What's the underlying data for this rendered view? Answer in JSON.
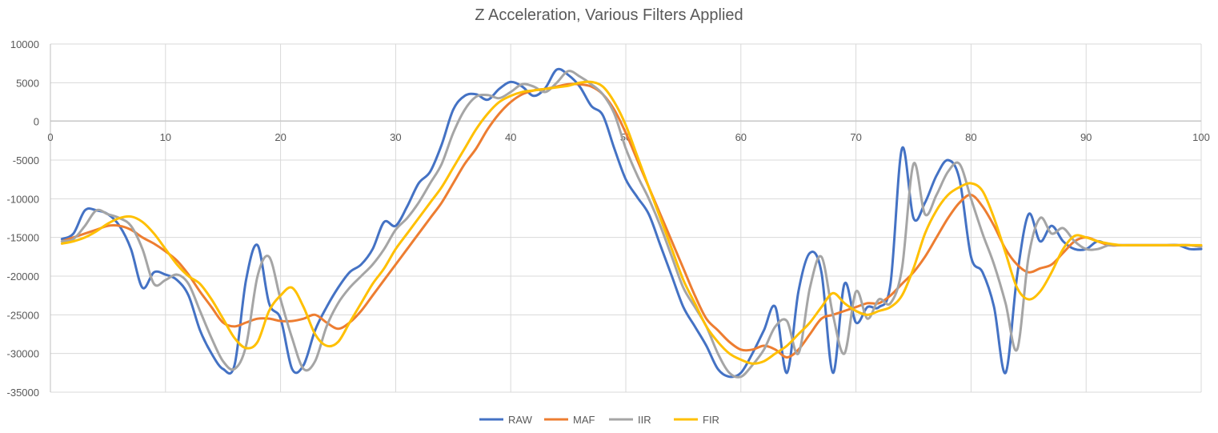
{
  "chart_data": {
    "type": "line",
    "title": "Z Acceleration, Various Filters Applied",
    "xlabel": "",
    "ylabel": "",
    "xlim": [
      0,
      100
    ],
    "ylim": [
      -35000,
      10000
    ],
    "xticks": [
      0,
      10,
      20,
      30,
      40,
      50,
      60,
      70,
      80,
      90,
      100
    ],
    "yticks": [
      10000,
      5000,
      0,
      -5000,
      -10000,
      -15000,
      -20000,
      -25000,
      -30000,
      -35000
    ],
    "grid": true,
    "legend_position": "bottom",
    "x": [
      1,
      2,
      3,
      4,
      5,
      6,
      7,
      8,
      9,
      10,
      11,
      12,
      13,
      14,
      15,
      16,
      17,
      18,
      19,
      20,
      21,
      22,
      23,
      24,
      25,
      26,
      27,
      28,
      29,
      30,
      31,
      32,
      33,
      34,
      35,
      36,
      37,
      38,
      39,
      40,
      41,
      42,
      43,
      44,
      45,
      46,
      47,
      48,
      49,
      50,
      51,
      52,
      53,
      54,
      55,
      56,
      57,
      58,
      59,
      60,
      61,
      62,
      63,
      64,
      65,
      66,
      67,
      68,
      69,
      70,
      71,
      72,
      73,
      74,
      75,
      76,
      77,
      78,
      79,
      80,
      81,
      82,
      83,
      84,
      85,
      86,
      87,
      88,
      89,
      90,
      91,
      92,
      93,
      94,
      95,
      96,
      97,
      98,
      99,
      100
    ],
    "series": [
      {
        "name": "RAW",
        "color": "#4472c4",
        "values": [
          -15200,
          -14500,
          -11500,
          -11500,
          -12000,
          -13500,
          -16500,
          -21500,
          -19500,
          -19800,
          -20500,
          -22500,
          -27000,
          -30000,
          -32000,
          -31500,
          -20500,
          -16000,
          -23500,
          -25500,
          -32000,
          -31500,
          -27000,
          -24000,
          -21500,
          -19500,
          -18500,
          -16500,
          -13000,
          -13500,
          -11000,
          -8000,
          -6500,
          -3000,
          1500,
          3300,
          3500,
          2800,
          4200,
          5100,
          4500,
          3300,
          4300,
          6700,
          6000,
          4500,
          2000,
          800,
          -3500,
          -7500,
          -9800,
          -12000,
          -16000,
          -20000,
          -24000,
          -26500,
          -29000,
          -32000,
          -33000,
          -32500,
          -30000,
          -27000,
          -24000,
          -32500,
          -22000,
          -17000,
          -19500,
          -32500,
          -21000,
          -26000,
          -24000,
          -24000,
          -21000,
          -3500,
          -12500,
          -10500,
          -7000,
          -5000,
          -7500,
          -17500,
          -19500,
          -24000,
          -32500,
          -20000,
          -12000,
          -15500,
          -13500,
          -15500,
          -16500,
          -16500,
          -15500,
          -16000,
          -16000,
          -16000,
          -16000,
          -16000,
          -16000,
          -16000,
          -16500,
          -16500
        ]
      },
      {
        "name": "MAF",
        "color": "#ed7d31",
        "values": [
          -15500,
          -15000,
          -14500,
          -14000,
          -13500,
          -13500,
          -14000,
          -15000,
          -15800,
          -16800,
          -18000,
          -19800,
          -22000,
          -24000,
          -26000,
          -26500,
          -26000,
          -25500,
          -25500,
          -25800,
          -25800,
          -25500,
          -25000,
          -26000,
          -26800,
          -26000,
          -24500,
          -22500,
          -20500,
          -18500,
          -16500,
          -14500,
          -12500,
          -10500,
          -8000,
          -5500,
          -3500,
          -1000,
          1000,
          2500,
          3500,
          4000,
          4200,
          4500,
          4800,
          4800,
          4500,
          3500,
          1500,
          -1500,
          -5000,
          -8500,
          -12000,
          -15500,
          -19000,
          -22500,
          -25500,
          -27000,
          -28500,
          -29500,
          -29500,
          -29000,
          -29500,
          -30500,
          -29500,
          -27500,
          -25500,
          -25000,
          -24500,
          -24000,
          -23500,
          -23500,
          -22500,
          -21000,
          -19500,
          -17500,
          -15000,
          -12500,
          -10500,
          -9500,
          -11000,
          -13500,
          -16500,
          -18500,
          -19500,
          -19000,
          -18500,
          -17000,
          -15500,
          -15000,
          -15500,
          -16000,
          -16000,
          -16000,
          -16000,
          -16000,
          -16000,
          -16000,
          -16000,
          -16200
        ]
      },
      {
        "name": "IIR",
        "color": "#a5a5a5",
        "values": [
          -15500,
          -15200,
          -13500,
          -11500,
          -12000,
          -12500,
          -13500,
          -16500,
          -21000,
          -20500,
          -19800,
          -21000,
          -24500,
          -28000,
          -31000,
          -32000,
          -29000,
          -20000,
          -17500,
          -23000,
          -28000,
          -32000,
          -31000,
          -26500,
          -23500,
          -21500,
          -20000,
          -18500,
          -16500,
          -14000,
          -12500,
          -10500,
          -8000,
          -5500,
          -1500,
          1500,
          3200,
          3400,
          3000,
          3800,
          4800,
          4500,
          3800,
          5000,
          6500,
          5800,
          4800,
          3500,
          1000,
          -3500,
          -7000,
          -10000,
          -13500,
          -17500,
          -21500,
          -24000,
          -26500,
          -30000,
          -32500,
          -33000,
          -31500,
          -29500,
          -26500,
          -25800,
          -30000,
          -21500,
          -17500,
          -25000,
          -30000,
          -22000,
          -25500,
          -23000,
          -23500,
          -19000,
          -5500,
          -12000,
          -9500,
          -6500,
          -5500,
          -10000,
          -14500,
          -18500,
          -23500,
          -29500,
          -17500,
          -12500,
          -14500,
          -13800,
          -15500,
          -16500,
          -16500,
          -16000,
          -16000,
          -16000,
          -16000,
          -16000,
          -16000,
          -16000,
          -16000,
          -16200
        ]
      },
      {
        "name": "FIR",
        "color": "#ffc000",
        "values": [
          -15800,
          -15500,
          -15000,
          -14200,
          -13200,
          -12500,
          -12300,
          -13000,
          -14500,
          -16500,
          -18500,
          -20000,
          -21000,
          -23000,
          -25500,
          -28000,
          -29300,
          -28500,
          -24500,
          -22500,
          -21500,
          -24000,
          -27500,
          -29000,
          -28500,
          -26000,
          -23500,
          -21000,
          -19000,
          -16500,
          -14500,
          -12500,
          -10500,
          -8500,
          -6000,
          -3500,
          -1000,
          1000,
          2500,
          3300,
          3800,
          4000,
          4200,
          4400,
          4600,
          5000,
          5100,
          4500,
          2500,
          -500,
          -4500,
          -8500,
          -12500,
          -16500,
          -20500,
          -23500,
          -26500,
          -28500,
          -30000,
          -30800,
          -31300,
          -31000,
          -30000,
          -29000,
          -27500,
          -26000,
          -24000,
          -22200,
          -23500,
          -24500,
          -25000,
          -24500,
          -24000,
          -22500,
          -19000,
          -14500,
          -11500,
          -9500,
          -8500,
          -8000,
          -9000,
          -12500,
          -17000,
          -21500,
          -23000,
          -22000,
          -19500,
          -16500,
          -14800,
          -15000,
          -15500,
          -15800,
          -16000,
          -16000,
          -16000,
          -16000,
          -16000,
          -16000,
          -16000,
          -16000
        ]
      }
    ]
  }
}
